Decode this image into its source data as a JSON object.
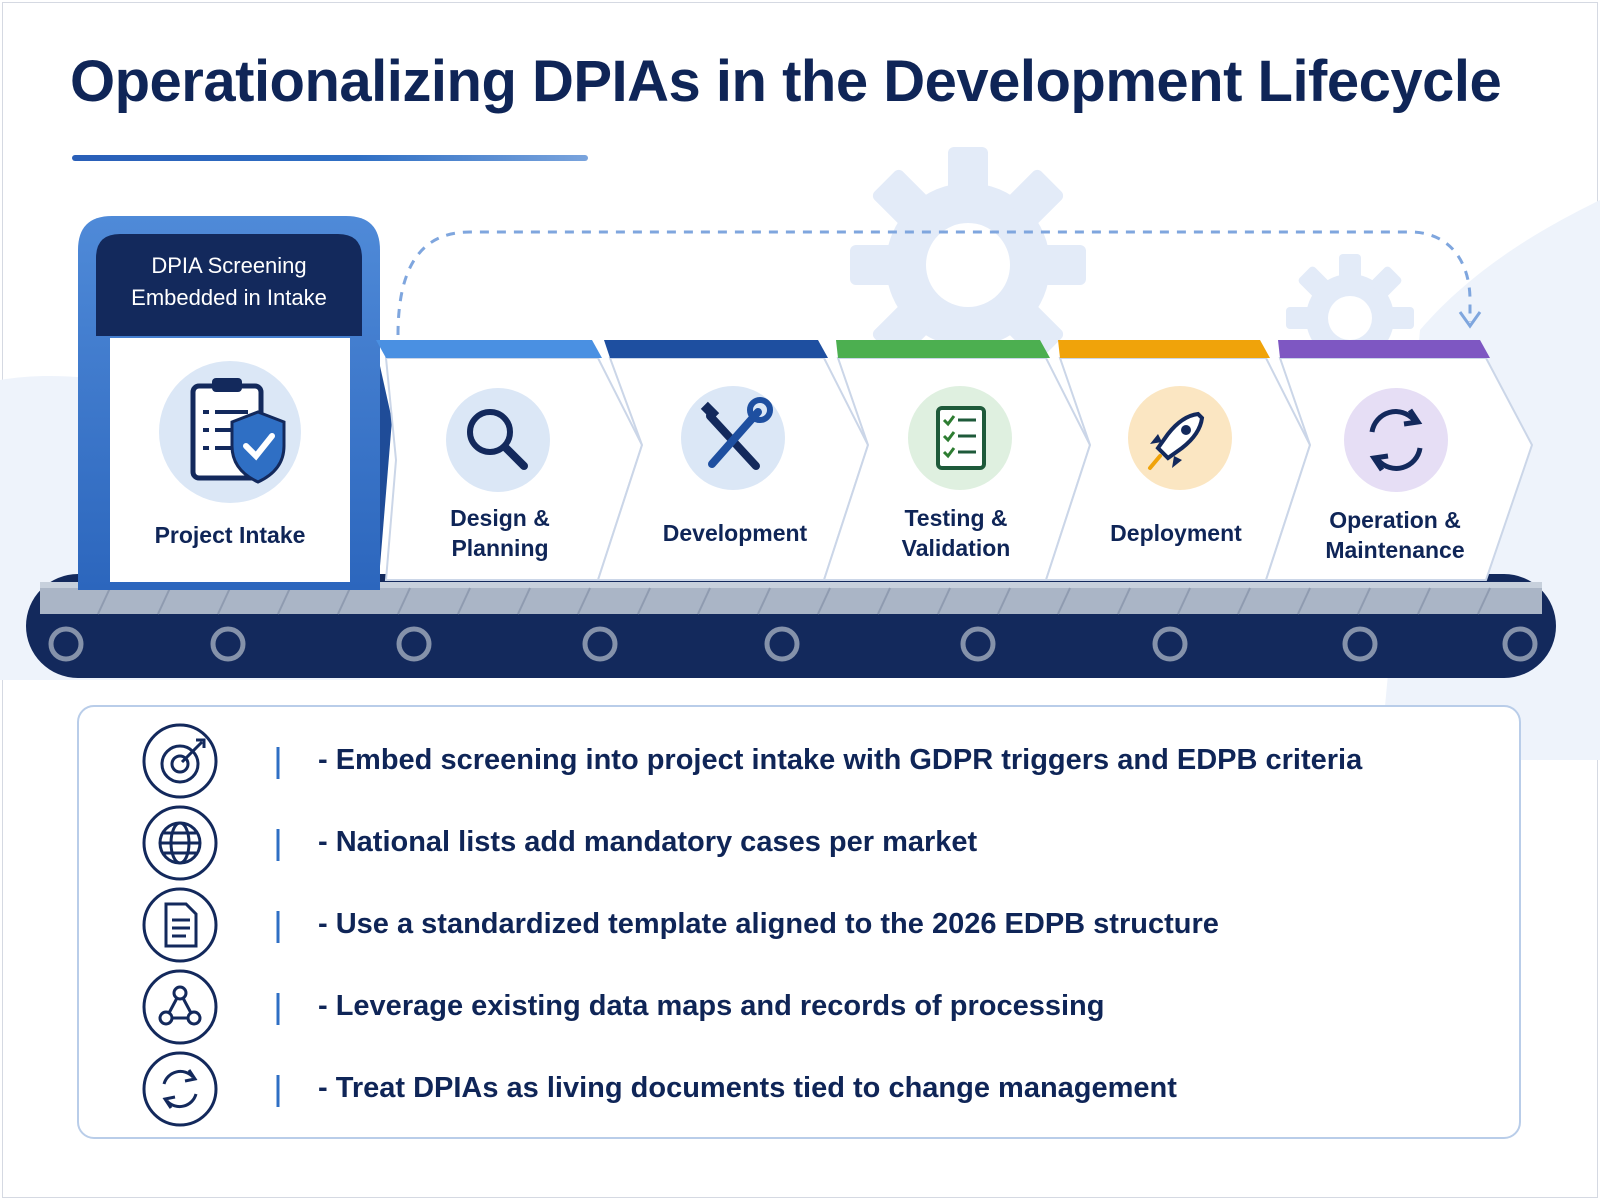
{
  "title": "Operationalizing DPIAs in the Development Lifecycle",
  "intake": {
    "tab_label_line1": "DPIA Screening",
    "tab_label_line2": "Embedded in Intake",
    "stage_label": "Project Intake",
    "icon": "clipboard-shield-icon"
  },
  "stages": [
    {
      "label_line1": "Design &",
      "label_line2": "Planning",
      "icon": "magnifier-icon",
      "accent": "#4a90e2"
    },
    {
      "label_line1": "Development",
      "label_line2": "",
      "icon": "tools-icon",
      "accent": "#1e4fa0"
    },
    {
      "label_line1": "Testing &",
      "label_line2": "Validation",
      "icon": "checklist-icon",
      "accent": "#4caf50"
    },
    {
      "label_line1": "Deployment",
      "label_line2": "",
      "icon": "rocket-icon",
      "accent": "#f0a30a"
    },
    {
      "label_line1": "Operation &",
      "label_line2": "Maintenance",
      "icon": "cycle-icon",
      "accent": "#7e57c2"
    }
  ],
  "bullets": [
    {
      "text": "- Embed screening into project intake with GDPR triggers and EDPB criteria",
      "icon": "target-icon"
    },
    {
      "text": "- National lists add mandatory cases per market",
      "icon": "globe-icon"
    },
    {
      "text": "- Use a standardized template aligned to the 2026 EDPB structure",
      "icon": "document-icon"
    },
    {
      "text": "- Leverage existing data maps and records of processing",
      "icon": "network-icon"
    },
    {
      "text": "- Treat DPIAs as living documents tied to change management",
      "icon": "refresh-icon"
    }
  ],
  "colors": {
    "navy": "#0f2557",
    "primary_blue": "#2f6fc4",
    "belt": "#13295c"
  }
}
